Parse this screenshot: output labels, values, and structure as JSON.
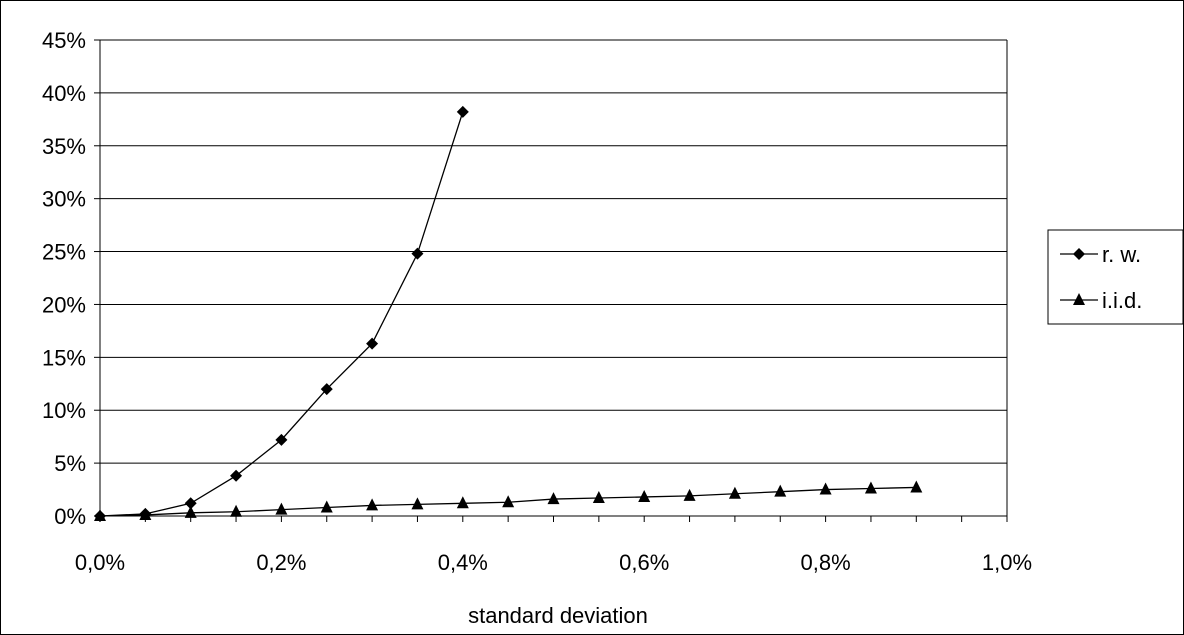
{
  "chart_data": {
    "type": "line",
    "title": "",
    "xlabel": "standard deviation",
    "ylabel": "",
    "xlim": [
      0,
      1.0
    ],
    "ylim": [
      0,
      45
    ],
    "x_ticks": [
      "0,0%",
      "0,2%",
      "0,4%",
      "0,6%",
      "0,8%",
      "1,0%"
    ],
    "x_tick_values": [
      0,
      0.2,
      0.4,
      0.6,
      0.8,
      1.0
    ],
    "y_ticks": [
      "0%",
      "5%",
      "10%",
      "15%",
      "20%",
      "25%",
      "30%",
      "35%",
      "40%",
      "45%"
    ],
    "y_tick_values": [
      0,
      5,
      10,
      15,
      20,
      25,
      30,
      35,
      40,
      45
    ],
    "grid": "horizontal",
    "legend_position": "right",
    "series": [
      {
        "name": "r. w.",
        "marker": "diamond",
        "color": "#000000",
        "x": [
          0,
          0.05,
          0.1,
          0.15,
          0.2,
          0.25,
          0.3,
          0.35,
          0.4
        ],
        "y": [
          0,
          0.2,
          1.2,
          3.8,
          7.2,
          12.0,
          16.3,
          24.8,
          38.2
        ]
      },
      {
        "name": "i.i.d.",
        "marker": "triangle",
        "color": "#000000",
        "x": [
          0,
          0.05,
          0.1,
          0.15,
          0.2,
          0.25,
          0.3,
          0.35,
          0.4,
          0.45,
          0.5,
          0.55,
          0.6,
          0.65,
          0.7,
          0.75,
          0.8,
          0.85,
          0.9
        ],
        "y": [
          0,
          0.1,
          0.3,
          0.4,
          0.6,
          0.8,
          1.0,
          1.1,
          1.2,
          1.3,
          1.6,
          1.7,
          1.8,
          1.9,
          2.1,
          2.3,
          2.5,
          2.6,
          2.7
        ]
      }
    ]
  }
}
